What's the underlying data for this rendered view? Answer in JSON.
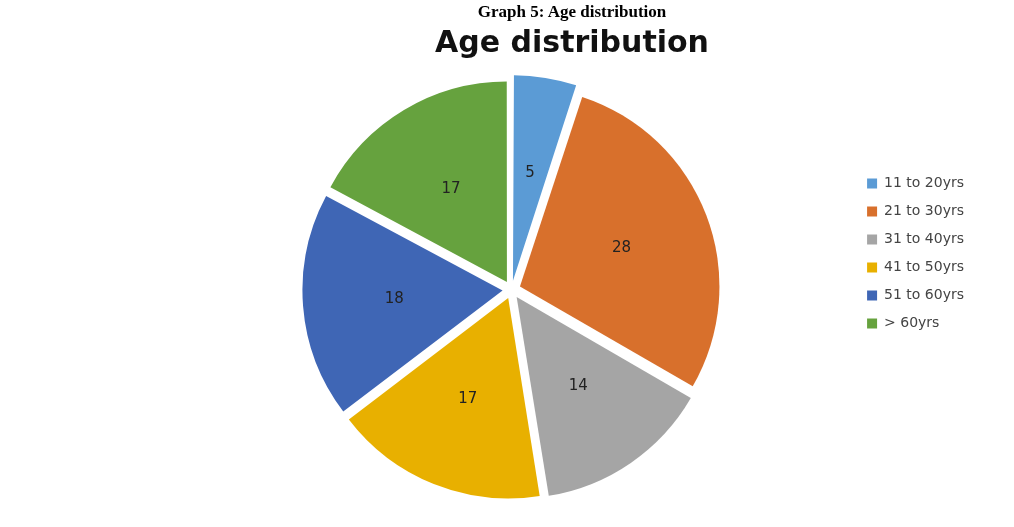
{
  "chart_data": {
    "type": "pie",
    "title": "Graph 5: Age distribution",
    "subtitle": "Age distribution",
    "categories": [
      "11 to 20yrs",
      "21 to 30yrs",
      "31 to 40yrs",
      "41 to 50yrs",
      "51 to 60yrs",
      "> 60yrs"
    ],
    "values": [
      5,
      28,
      14,
      17,
      18,
      17
    ],
    "colors": [
      "#5b9bd5",
      "#d8702c",
      "#a5a5a5",
      "#e8b000",
      "#3f66b5",
      "#66a23e"
    ],
    "data_labels": true,
    "legend": "right"
  }
}
